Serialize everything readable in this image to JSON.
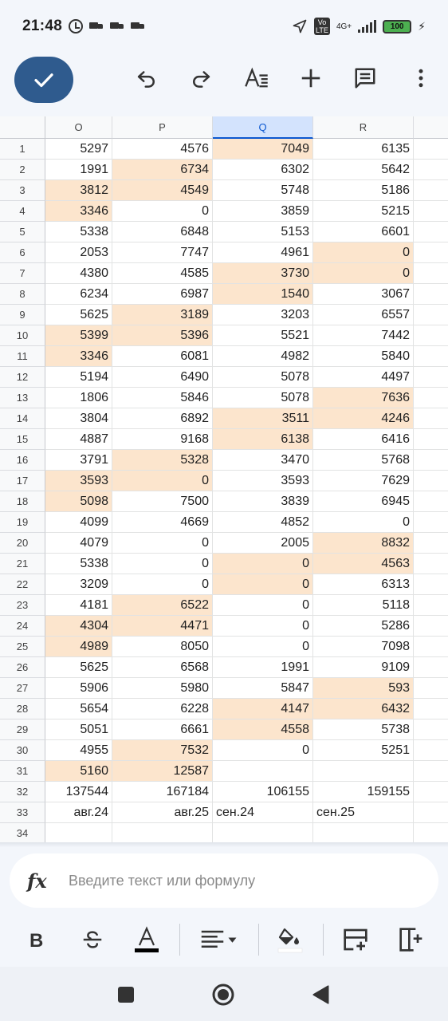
{
  "status": {
    "time": "21:48",
    "network": "4G+",
    "volte": "Vo LTE",
    "battery": "100"
  },
  "formula": {
    "placeholder": "Введите текст или формулу",
    "fx_label": "fx"
  },
  "columns": [
    "O",
    "P",
    "Q",
    "R"
  ],
  "selected_column": "Q",
  "rows": [
    {
      "n": "1",
      "cells": [
        "5297",
        "4576",
        "7049",
        "6135"
      ],
      "hl": [
        false,
        false,
        true,
        false
      ]
    },
    {
      "n": "2",
      "cells": [
        "1991",
        "6734",
        "6302",
        "5642"
      ],
      "hl": [
        false,
        true,
        false,
        false
      ]
    },
    {
      "n": "3",
      "cells": [
        "3812",
        "4549",
        "5748",
        "5186"
      ],
      "hl": [
        true,
        true,
        false,
        false
      ]
    },
    {
      "n": "4",
      "cells": [
        "3346",
        "0",
        "3859",
        "5215"
      ],
      "hl": [
        true,
        false,
        false,
        false
      ]
    },
    {
      "n": "5",
      "cells": [
        "5338",
        "6848",
        "5153",
        "6601"
      ],
      "hl": [
        false,
        false,
        false,
        false
      ]
    },
    {
      "n": "6",
      "cells": [
        "2053",
        "7747",
        "4961",
        "0"
      ],
      "hl": [
        false,
        false,
        false,
        true
      ]
    },
    {
      "n": "7",
      "cells": [
        "4380",
        "4585",
        "3730",
        "0"
      ],
      "hl": [
        false,
        false,
        true,
        true
      ]
    },
    {
      "n": "8",
      "cells": [
        "6234",
        "6987",
        "1540",
        "3067"
      ],
      "hl": [
        false,
        false,
        true,
        false
      ]
    },
    {
      "n": "9",
      "cells": [
        "5625",
        "3189",
        "3203",
        "6557"
      ],
      "hl": [
        false,
        true,
        false,
        false
      ]
    },
    {
      "n": "10",
      "cells": [
        "5399",
        "5396",
        "5521",
        "7442"
      ],
      "hl": [
        true,
        true,
        false,
        false
      ]
    },
    {
      "n": "11",
      "cells": [
        "3346",
        "6081",
        "4982",
        "5840"
      ],
      "hl": [
        true,
        false,
        false,
        false
      ]
    },
    {
      "n": "12",
      "cells": [
        "5194",
        "6490",
        "5078",
        "4497"
      ],
      "hl": [
        false,
        false,
        false,
        false
      ]
    },
    {
      "n": "13",
      "cells": [
        "1806",
        "5846",
        "5078",
        "7636"
      ],
      "hl": [
        false,
        false,
        false,
        true
      ]
    },
    {
      "n": "14",
      "cells": [
        "3804",
        "6892",
        "3511",
        "4246"
      ],
      "hl": [
        false,
        false,
        true,
        true
      ]
    },
    {
      "n": "15",
      "cells": [
        "4887",
        "9168",
        "6138",
        "6416"
      ],
      "hl": [
        false,
        false,
        true,
        false
      ]
    },
    {
      "n": "16",
      "cells": [
        "3791",
        "5328",
        "3470",
        "5768"
      ],
      "hl": [
        false,
        true,
        false,
        false
      ]
    },
    {
      "n": "17",
      "cells": [
        "3593",
        "0",
        "3593",
        "7629"
      ],
      "hl": [
        true,
        true,
        false,
        false
      ]
    },
    {
      "n": "18",
      "cells": [
        "5098",
        "7500",
        "3839",
        "6945"
      ],
      "hl": [
        true,
        false,
        false,
        false
      ]
    },
    {
      "n": "19",
      "cells": [
        "4099",
        "4669",
        "4852",
        "0"
      ],
      "hl": [
        false,
        false,
        false,
        false
      ]
    },
    {
      "n": "20",
      "cells": [
        "4079",
        "0",
        "2005",
        "8832"
      ],
      "hl": [
        false,
        false,
        false,
        true
      ]
    },
    {
      "n": "21",
      "cells": [
        "5338",
        "0",
        "0",
        "4563"
      ],
      "hl": [
        false,
        false,
        true,
        true
      ]
    },
    {
      "n": "22",
      "cells": [
        "3209",
        "0",
        "0",
        "6313"
      ],
      "hl": [
        false,
        false,
        true,
        false
      ]
    },
    {
      "n": "23",
      "cells": [
        "4181",
        "6522",
        "0",
        "5118"
      ],
      "hl": [
        false,
        true,
        false,
        false
      ]
    },
    {
      "n": "24",
      "cells": [
        "4304",
        "4471",
        "0",
        "5286"
      ],
      "hl": [
        true,
        true,
        false,
        false
      ]
    },
    {
      "n": "25",
      "cells": [
        "4989",
        "8050",
        "0",
        "7098"
      ],
      "hl": [
        true,
        false,
        false,
        false
      ]
    },
    {
      "n": "26",
      "cells": [
        "5625",
        "6568",
        "1991",
        "9109"
      ],
      "hl": [
        false,
        false,
        false,
        false
      ]
    },
    {
      "n": "27",
      "cells": [
        "5906",
        "5980",
        "5847",
        "593"
      ],
      "hl": [
        false,
        false,
        false,
        true
      ]
    },
    {
      "n": "28",
      "cells": [
        "5654",
        "6228",
        "4147",
        "6432"
      ],
      "hl": [
        false,
        false,
        true,
        true
      ]
    },
    {
      "n": "29",
      "cells": [
        "5051",
        "6661",
        "4558",
        "5738"
      ],
      "hl": [
        false,
        false,
        true,
        false
      ]
    },
    {
      "n": "30",
      "cells": [
        "4955",
        "7532",
        "0",
        "5251"
      ],
      "hl": [
        false,
        true,
        false,
        false
      ]
    },
    {
      "n": "31",
      "cells": [
        "5160",
        "12587",
        "",
        ""
      ],
      "hl": [
        true,
        true,
        false,
        false
      ]
    },
    {
      "n": "32",
      "cells": [
        "137544",
        "167184",
        "106155",
        "159155"
      ],
      "hl": [
        false,
        false,
        false,
        false
      ]
    },
    {
      "n": "33",
      "cells": [
        "авг.24",
        "авг.25",
        "сен.24",
        "сен.25"
      ],
      "hl": [
        false,
        false,
        false,
        false
      ],
      "align": [
        "right",
        "right",
        "left",
        "left"
      ]
    },
    {
      "n": "34",
      "cells": [
        "",
        "",
        "",
        ""
      ],
      "hl": [
        false,
        false,
        false,
        false
      ]
    }
  ],
  "colors": {
    "accent": "#2f5b8e",
    "highlight": "#fce5cd",
    "selected_header": "#d3e3fd"
  }
}
